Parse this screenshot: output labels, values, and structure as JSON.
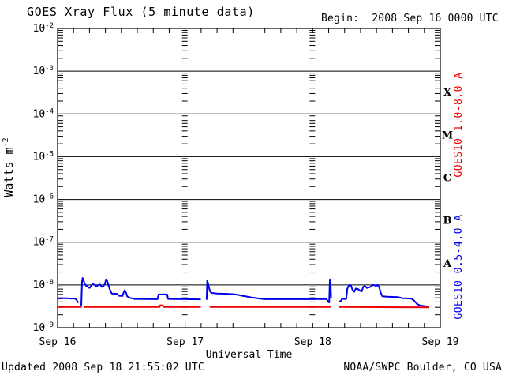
{
  "header": {
    "title": "GOES Xray Flux (5 minute data)",
    "begin_label": "Begin:  2008 Sep 16 0000 UTC"
  },
  "footer": {
    "updated": "Updated 2008 Sep 18 21:55:02 UTC",
    "source": "NOAA/SWPC Boulder, CO USA"
  },
  "chart_data": {
    "type": "line",
    "title": "GOES Xray Flux (5 minute data)",
    "xlabel": "Universal Time",
    "ylabel": "Watts m",
    "ylabel_exponent": "-2",
    "x_unit_hours_since": "2008 Sep 16 0000 UTC",
    "xlim_hours": [
      0,
      72
    ],
    "ylim": [
      1e-09,
      0.01
    ],
    "y_scale": "log",
    "y_decades": [
      -2,
      -3,
      -4,
      -5,
      -6,
      -7,
      -8,
      -9
    ],
    "grid_h_lines_log10": [
      -3,
      -4,
      -5,
      -6,
      -7,
      -8
    ],
    "day_grid_hours": [
      24,
      48
    ],
    "x_minor_tick_hours": 3,
    "x_ticks": [
      {
        "hours": 0,
        "label": "Sep 16"
      },
      {
        "hours": 24,
        "label": "Sep 17"
      },
      {
        "hours": 48,
        "label": "Sep 18"
      },
      {
        "hours": 72,
        "label": "Sep 19"
      }
    ],
    "flare_classes": [
      {
        "label": "X",
        "log10_center": -3.5
      },
      {
        "label": "M",
        "log10_center": -4.5
      },
      {
        "label": "C",
        "log10_center": -5.5
      },
      {
        "label": "B",
        "log10_center": -6.5
      },
      {
        "label": "A",
        "log10_center": -7.5
      }
    ],
    "colors": {
      "axis": "#000000",
      "background": "#ffffff",
      "red_series": "#ee0000",
      "blue_series": "#0000ee"
    },
    "series": [
      {
        "name": "GOES10 0.5-4.0 A",
        "color": "#0000ee",
        "label_position": "right-lower",
        "segments": [
          [
            [
              0,
              4.8e-09
            ],
            [
              1.5,
              4.9e-09
            ],
            [
              2.5,
              4.8e-09
            ],
            [
              3.3,
              4.8e-09
            ],
            [
              3.6,
              4.4e-09
            ],
            [
              3.8,
              4e-09
            ],
            [
              3.86,
              3.8e-09
            ]
          ],
          [
            [
              4.45,
              3.3e-09
            ],
            [
              4.6,
              1.2e-08
            ],
            [
              4.7,
              1.45e-08
            ],
            [
              4.9,
              1.25e-08
            ],
            [
              5.1,
              1.05e-08
            ],
            [
              5.4,
              9.5e-09
            ],
            [
              5.7,
              9e-09
            ],
            [
              6.0,
              8.5e-09
            ],
            [
              6.3,
              9.5e-09
            ],
            [
              6.6,
              1.05e-08
            ],
            [
              7.0,
              1e-08
            ],
            [
              7.3,
              9.2e-09
            ],
            [
              7.6,
              9.8e-09
            ],
            [
              8.0,
              1.02e-08
            ],
            [
              8.3,
              9e-09
            ],
            [
              8.6,
              9.3e-09
            ],
            [
              8.9,
              1.05e-08
            ],
            [
              9.1,
              1.35e-08
            ],
            [
              9.3,
              1.3e-08
            ],
            [
              9.5,
              1.05e-08
            ],
            [
              9.8,
              8e-09
            ],
            [
              10.0,
              7e-09
            ],
            [
              10.2,
              6.3e-09
            ],
            [
              11.2,
              6.2e-09
            ],
            [
              11.5,
              5.6e-09
            ],
            [
              12.2,
              5.5e-09
            ],
            [
              12.4,
              6.5e-09
            ],
            [
              12.6,
              7.5e-09
            ],
            [
              12.9,
              6.5e-09
            ],
            [
              13.1,
              5.4e-09
            ],
            [
              13.6,
              5e-09
            ],
            [
              14.5,
              4.7e-09
            ],
            [
              18.8,
              4.65e-09
            ],
            [
              19.0,
              6e-09
            ],
            [
              20.6,
              6e-09
            ],
            [
              20.8,
              4.7e-09
            ],
            [
              24.0,
              4.65e-09
            ],
            [
              26.95,
              4.6e-09
            ]
          ],
          [
            [
              28.05,
              4.5e-09
            ],
            [
              28.15,
              1.25e-08
            ],
            [
              28.3,
              1.1e-08
            ],
            [
              28.5,
              8.5e-09
            ],
            [
              28.7,
              7e-09
            ],
            [
              29.0,
              6.5e-09
            ],
            [
              30.0,
              6.3e-09
            ],
            [
              32.0,
              6.2e-09
            ],
            [
              33.5,
              6e-09
            ],
            [
              35.0,
              5.5e-09
            ],
            [
              36.5,
              5.1e-09
            ],
            [
              38.0,
              4.8e-09
            ],
            [
              39.0,
              4.65e-09
            ],
            [
              44.0,
              4.65e-09
            ],
            [
              48.0,
              4.65e-09
            ],
            [
              50.6,
              4.7e-09
            ],
            [
              50.9,
              4e-09
            ],
            [
              51.1,
              3.9e-09
            ],
            [
              51.2,
              1.1e-08
            ],
            [
              51.25,
              1.35e-08
            ],
            [
              51.35,
              1.2e-08
            ],
            [
              51.45,
              5e-09
            ]
          ],
          [
            [
              52.9,
              4.1e-09
            ],
            [
              53.3,
              4.2e-09
            ],
            [
              53.5,
              4.7e-09
            ],
            [
              54.3,
              4.7e-09
            ],
            [
              54.5,
              8e-09
            ],
            [
              54.7,
              9.3e-09
            ],
            [
              54.9,
              1e-08
            ],
            [
              55.2,
              9.7e-09
            ],
            [
              55.5,
              7.5e-09
            ],
            [
              55.8,
              6.9e-09
            ],
            [
              56.1,
              8.2e-09
            ],
            [
              56.5,
              8e-09
            ],
            [
              56.9,
              7.4e-09
            ],
            [
              57.2,
              7e-09
            ],
            [
              57.5,
              9e-09
            ],
            [
              57.8,
              9.5e-09
            ],
            [
              58.2,
              8.5e-09
            ],
            [
              58.6,
              8.8e-09
            ],
            [
              59.0,
              9.2e-09
            ],
            [
              59.3,
              1e-08
            ],
            [
              59.6,
              9.8e-09
            ],
            [
              59.9,
              9.5e-09
            ],
            [
              60.2,
              1e-08
            ],
            [
              60.5,
              9e-09
            ],
            [
              60.8,
              6.5e-09
            ],
            [
              61.1,
              5.4e-09
            ],
            [
              62.0,
              5.3e-09
            ],
            [
              64.0,
              5.2e-09
            ],
            [
              64.8,
              4.9e-09
            ],
            [
              66.5,
              4.8e-09
            ],
            [
              67.0,
              4.4e-09
            ],
            [
              67.6,
              3.6e-09
            ],
            [
              68.2,
              3.3e-09
            ],
            [
              69.0,
              3.2e-09
            ],
            [
              69.92,
              3.1e-09
            ]
          ]
        ]
      },
      {
        "name": "GOES10 1.0-8.0 A",
        "color": "#ee0000",
        "label_position": "right-upper",
        "segments": [
          [
            [
              0,
              3.05e-09
            ],
            [
              4.55,
              3.05e-09
            ]
          ],
          [
            [
              5.05,
              3.05e-09
            ],
            [
              19.2,
              3.05e-09
            ],
            [
              19.3,
              3.35e-09
            ],
            [
              19.8,
              3.35e-09
            ],
            [
              19.9,
              3.05e-09
            ],
            [
              26.95,
              3.05e-09
            ]
          ],
          [
            [
              28.6,
              3.05e-09
            ],
            [
              51.5,
              3.05e-09
            ]
          ],
          [
            [
              52.9,
              3.05e-09
            ],
            [
              69.92,
              3e-09
            ]
          ]
        ]
      }
    ]
  }
}
